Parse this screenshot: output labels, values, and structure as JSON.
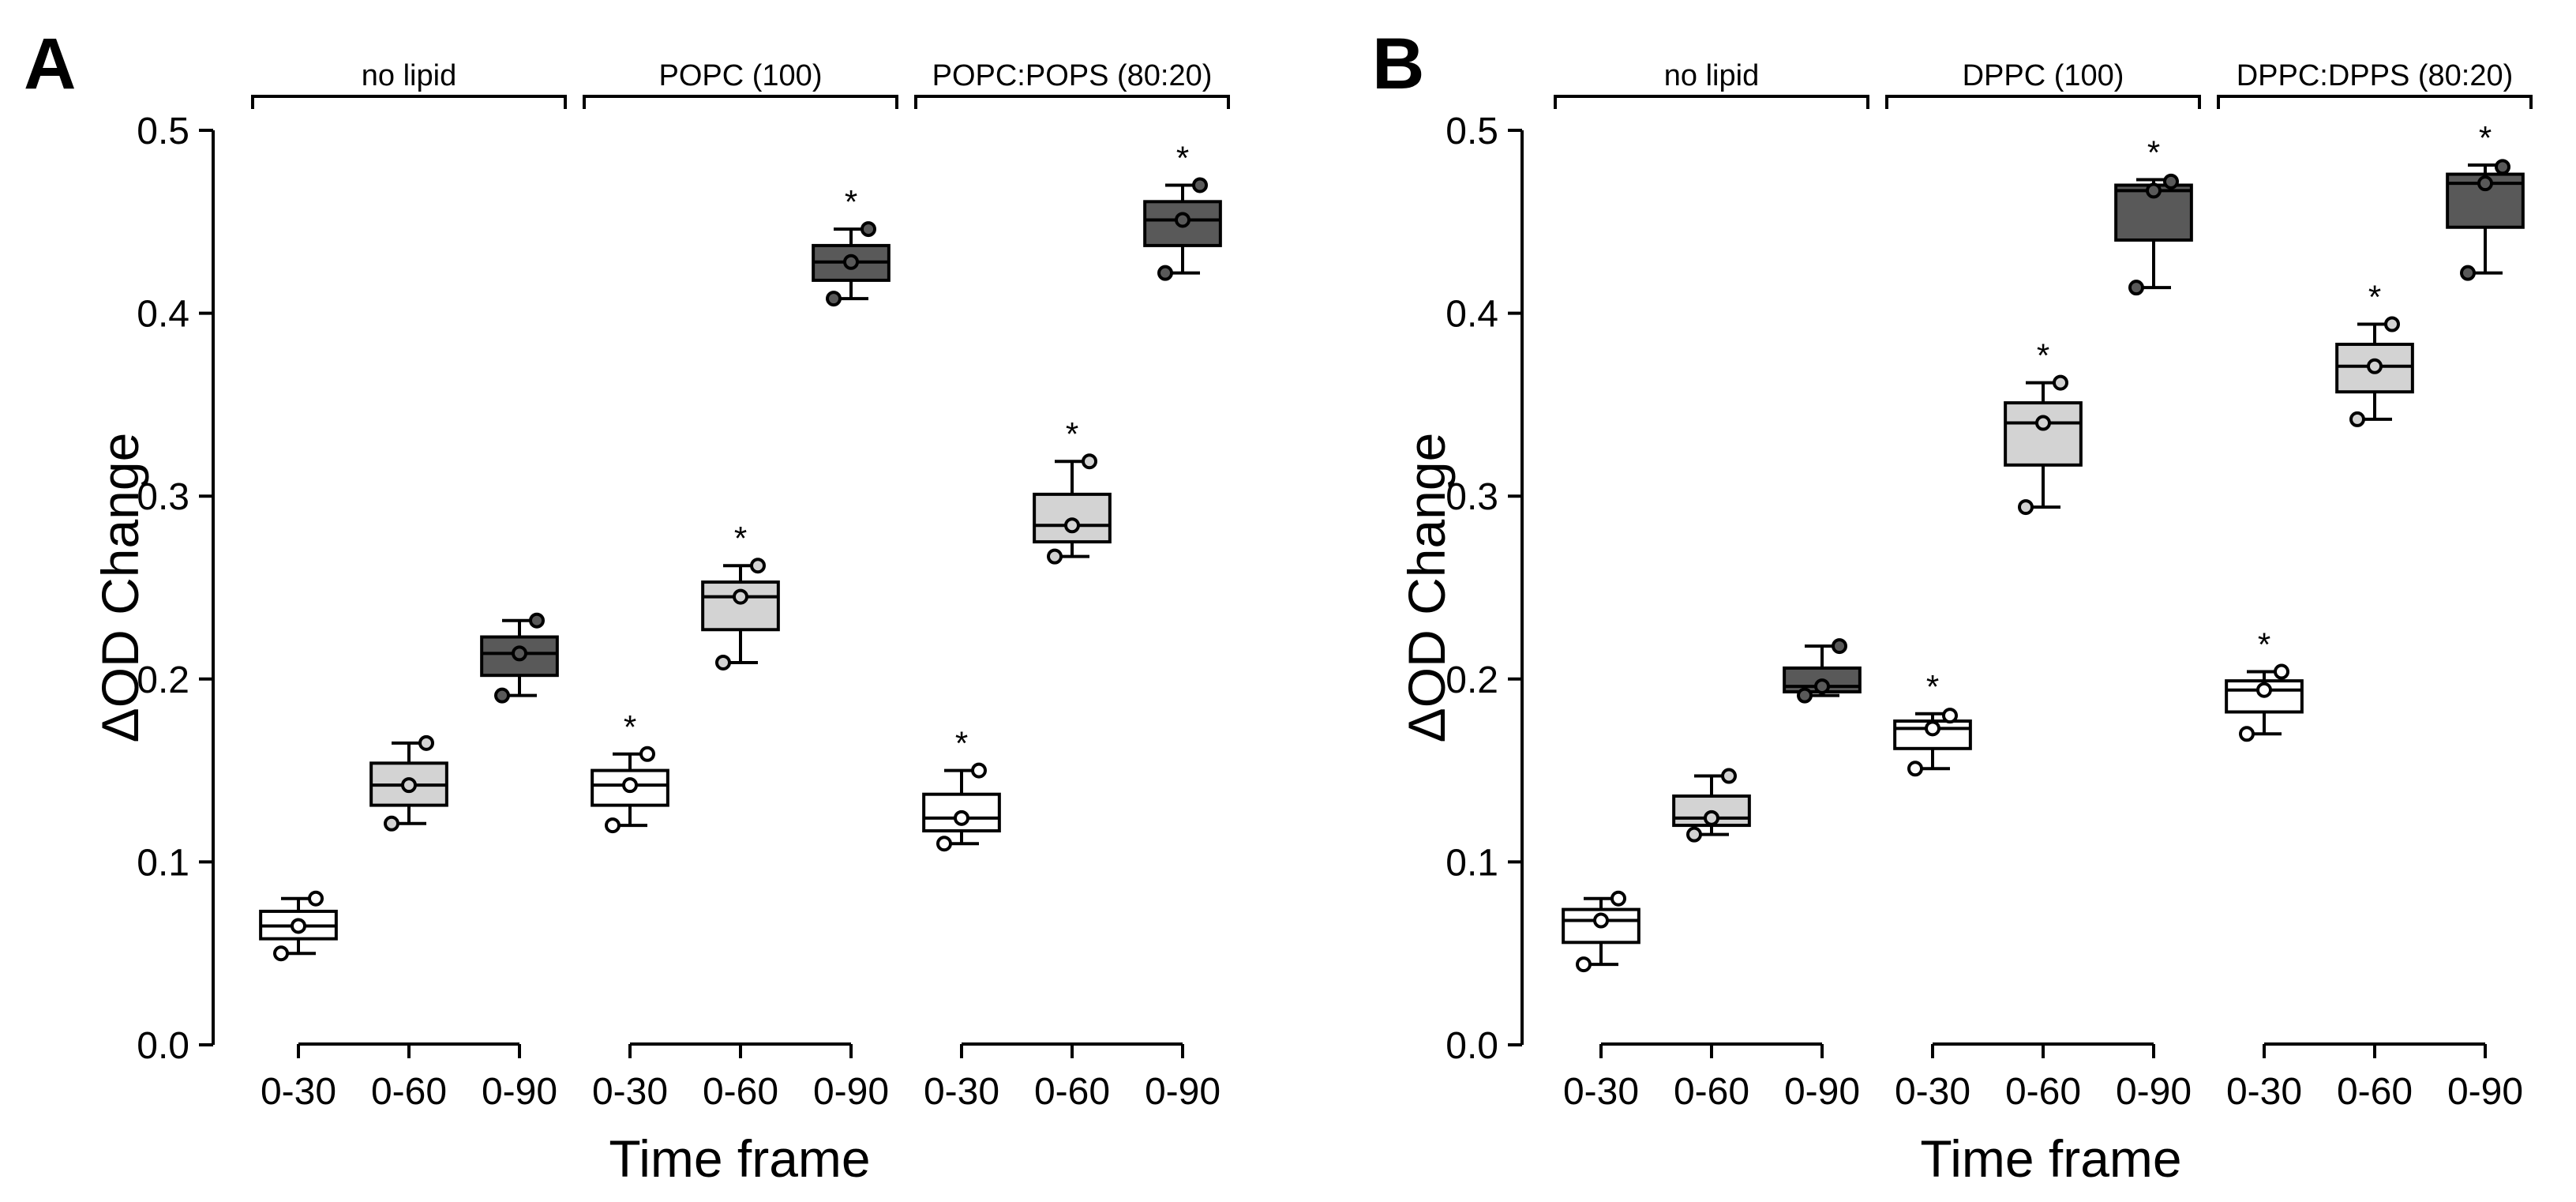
{
  "colors": {
    "white": "#ffffff",
    "light": "#d3d3d3",
    "dark": "#595959",
    "axis": "#000000"
  },
  "chart_data": [
    {
      "type": "box",
      "panel": "A",
      "xlabel": "Time frame",
      "ylabel": "ΔOD Change",
      "ylim": [
        0,
        0.5
      ],
      "yticks": [
        "0.0",
        "0.1",
        "0.2",
        "0.3",
        "0.4",
        "0.5"
      ],
      "groups": [
        {
          "label": "no lipid",
          "boxes": [
            {
              "x": "0-30",
              "fill": "white",
              "q1": 0.058,
              "median": 0.065,
              "q3": 0.073,
              "low": 0.05,
              "high": 0.08,
              "points": [
                0.05,
                0.065,
                0.08
              ],
              "sig": ""
            },
            {
              "x": "0-60",
              "fill": "light",
              "q1": 0.131,
              "median": 0.142,
              "q3": 0.154,
              "low": 0.121,
              "high": 0.165,
              "points": [
                0.121,
                0.142,
                0.165
              ],
              "sig": ""
            },
            {
              "x": "0-90",
              "fill": "dark",
              "q1": 0.202,
              "median": 0.214,
              "q3": 0.223,
              "low": 0.191,
              "high": 0.232,
              "points": [
                0.191,
                0.214,
                0.232
              ],
              "sig": ""
            }
          ]
        },
        {
          "label": "POPC (100)",
          "boxes": [
            {
              "x": "0-30",
              "fill": "white",
              "q1": 0.131,
              "median": 0.142,
              "q3": 0.15,
              "low": 0.12,
              "high": 0.159,
              "points": [
                0.12,
                0.142,
                0.159
              ],
              "sig": "*"
            },
            {
              "x": "0-60",
              "fill": "light",
              "q1": 0.227,
              "median": 0.245,
              "q3": 0.253,
              "low": 0.209,
              "high": 0.262,
              "points": [
                0.209,
                0.245,
                0.262
              ],
              "sig": "*"
            },
            {
              "x": "0-90",
              "fill": "dark",
              "q1": 0.418,
              "median": 0.428,
              "q3": 0.437,
              "low": 0.408,
              "high": 0.446,
              "points": [
                0.408,
                0.428,
                0.446
              ],
              "sig": "*"
            }
          ]
        },
        {
          "label": "POPC:POPS (80:20)",
          "boxes": [
            {
              "x": "0-30",
              "fill": "white",
              "q1": 0.117,
              "median": 0.124,
              "q3": 0.137,
              "low": 0.11,
              "high": 0.15,
              "points": [
                0.11,
                0.124,
                0.15
              ],
              "sig": "*"
            },
            {
              "x": "0-60",
              "fill": "light",
              "q1": 0.275,
              "median": 0.284,
              "q3": 0.301,
              "low": 0.267,
              "high": 0.319,
              "points": [
                0.267,
                0.284,
                0.319
              ],
              "sig": "*"
            },
            {
              "x": "0-90",
              "fill": "dark",
              "q1": 0.437,
              "median": 0.451,
              "q3": 0.461,
              "low": 0.422,
              "high": 0.47,
              "points": [
                0.422,
                0.451,
                0.47
              ],
              "sig": "*"
            }
          ]
        }
      ]
    },
    {
      "type": "box",
      "panel": "B",
      "xlabel": "Time frame",
      "ylabel": "ΔOD Change",
      "ylim": [
        0,
        0.5
      ],
      "yticks": [
        "0.0",
        "0.1",
        "0.2",
        "0.3",
        "0.4",
        "0.5"
      ],
      "groups": [
        {
          "label": "no lipid",
          "boxes": [
            {
              "x": "0-30",
              "fill": "white",
              "q1": 0.056,
              "median": 0.068,
              "q3": 0.074,
              "low": 0.044,
              "high": 0.08,
              "points": [
                0.044,
                0.068,
                0.08
              ],
              "sig": ""
            },
            {
              "x": "0-60",
              "fill": "light",
              "q1": 0.12,
              "median": 0.124,
              "q3": 0.136,
              "low": 0.115,
              "high": 0.147,
              "points": [
                0.115,
                0.124,
                0.147
              ],
              "sig": ""
            },
            {
              "x": "0-90",
              "fill": "dark",
              "q1": 0.193,
              "median": 0.196,
              "q3": 0.206,
              "low": 0.191,
              "high": 0.218,
              "points": [
                0.191,
                0.196,
                0.218
              ],
              "sig": ""
            }
          ]
        },
        {
          "label": "DPPC (100)",
          "boxes": [
            {
              "x": "0-30",
              "fill": "white",
              "q1": 0.162,
              "median": 0.173,
              "q3": 0.177,
              "low": 0.151,
              "high": 0.181,
              "points": [
                0.151,
                0.173,
                0.18
              ],
              "sig": "*"
            },
            {
              "x": "0-60",
              "fill": "light",
              "q1": 0.317,
              "median": 0.34,
              "q3": 0.351,
              "low": 0.294,
              "high": 0.362,
              "points": [
                0.294,
                0.34,
                0.362
              ],
              "sig": "*"
            },
            {
              "x": "0-90",
              "fill": "dark",
              "q1": 0.44,
              "median": 0.467,
              "q3": 0.47,
              "low": 0.414,
              "high": 0.473,
              "points": [
                0.414,
                0.467,
                0.472
              ],
              "sig": "*"
            }
          ]
        },
        {
          "label": "DPPC:DPPS (80:20)",
          "boxes": [
            {
              "x": "0-30",
              "fill": "white",
              "q1": 0.182,
              "median": 0.194,
              "q3": 0.199,
              "low": 0.17,
              "high": 0.204,
              "points": [
                0.17,
                0.194,
                0.204
              ],
              "sig": "*"
            },
            {
              "x": "0-60",
              "fill": "light",
              "q1": 0.357,
              "median": 0.371,
              "q3": 0.383,
              "low": 0.342,
              "high": 0.394,
              "points": [
                0.342,
                0.371,
                0.394
              ],
              "sig": "*"
            },
            {
              "x": "0-90",
              "fill": "dark",
              "q1": 0.447,
              "median": 0.471,
              "q3": 0.476,
              "low": 0.422,
              "high": 0.481,
              "points": [
                0.422,
                0.471,
                0.48
              ],
              "sig": "*"
            }
          ]
        }
      ]
    }
  ]
}
